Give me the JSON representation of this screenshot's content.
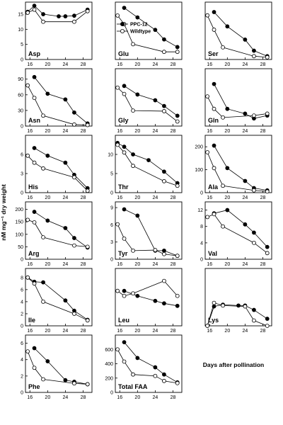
{
  "figure": {
    "y_axis_label": "nM mg⁻¹ dry weight",
    "x_axis_label": "Days after pollination"
  },
  "legend": {
    "entries": [
      {
        "label": "PPC-12",
        "marker": "filled-circle"
      },
      {
        "label": "Wildtype",
        "marker": "open-circle"
      }
    ],
    "placement": "inside Glu panel, top-left"
  },
  "style": {
    "line_color": "#000000",
    "filled_marker": "#000000",
    "open_marker": "#ffffff"
  },
  "chart_data": [
    {
      "type": "line",
      "title": "Asp",
      "x_ticks": [
        16,
        20,
        24,
        28
      ],
      "xlim": [
        15,
        30
      ],
      "ylim": [
        0,
        19
      ],
      "y_ticks": [
        0,
        5,
        10,
        15
      ],
      "series": [
        {
          "name": "PPC-12",
          "x": [
            15.5,
            17,
            19,
            22.5,
            24,
            26,
            29
          ],
          "y": [
            15.8,
            17.8,
            15,
            14.3,
            14.3,
            14.5,
            16.5
          ]
        },
        {
          "name": "Wildtype",
          "x": [
            15.5,
            17,
            19,
            26,
            29
          ],
          "y": [
            15.5,
            16.5,
            12.5,
            12.5,
            16
          ]
        }
      ]
    },
    {
      "type": "line",
      "title": "Glu",
      "x_ticks": [
        16,
        20,
        24,
        28
      ],
      "xlim": [
        15,
        30
      ],
      "ylim": [
        5,
        65
      ],
      "y_ticks": [],
      "series": [
        {
          "name": "PPC-12",
          "x": [
            17,
            20,
            24,
            26,
            29
          ],
          "y": [
            59,
            49,
            36,
            26,
            18
          ]
        },
        {
          "name": "Wildtype",
          "x": [
            15.5,
            17,
            19,
            26,
            29
          ],
          "y": [
            51,
            42,
            21,
            13,
            13
          ]
        }
      ]
    },
    {
      "type": "line",
      "title": "Ser",
      "x_ticks": [
        16,
        20,
        24,
        28
      ],
      "xlim": [
        15,
        30
      ],
      "ylim": [
        0,
        26
      ],
      "y_ticks": [],
      "series": [
        {
          "name": "PPC-12",
          "x": [
            17,
            20,
            24,
            26,
            29
          ],
          "y": [
            21.5,
            15,
            9,
            4,
            1.5
          ]
        },
        {
          "name": "Wildtype",
          "x": [
            15.5,
            17,
            19,
            26,
            29
          ],
          "y": [
            20,
            13.5,
            5.5,
            1.5,
            1
          ]
        }
      ]
    },
    {
      "type": "line",
      "title": "Asn",
      "x_ticks": [
        16,
        20,
        24,
        28
      ],
      "xlim": [
        15,
        30
      ],
      "ylim": [
        0,
        110
      ],
      "y_ticks": [
        0,
        30,
        60,
        90
      ],
      "series": [
        {
          "name": "PPC-12",
          "x": [
            17,
            20,
            24,
            26,
            29
          ],
          "y": [
            94,
            62,
            51,
            26,
            5
          ]
        },
        {
          "name": "Wildtype",
          "x": [
            15.5,
            17,
            19,
            26,
            29
          ],
          "y": [
            78,
            54,
            20,
            3,
            2
          ]
        }
      ]
    },
    {
      "type": "line",
      "title": "Gly",
      "x_ticks": [
        16,
        20,
        24,
        28
      ],
      "xlim": [
        15,
        30
      ],
      "ylim": [
        0,
        10
      ],
      "y_ticks": [],
      "series": [
        {
          "name": "PPC-12",
          "x": [
            17,
            20,
            24,
            26,
            29
          ],
          "y": [
            7,
            5.5,
            4.5,
            3.5,
            1.8
          ]
        },
        {
          "name": "Wildtype",
          "x": [
            15.5,
            17,
            19,
            26,
            29
          ],
          "y": [
            6.7,
            5.6,
            2.7,
            2.6,
            0.8
          ]
        }
      ]
    },
    {
      "type": "line",
      "title": "Gln",
      "x_ticks": [
        16,
        20,
        24,
        28
      ],
      "xlim": [
        15,
        30
      ],
      "ylim": [
        0,
        60
      ],
      "y_ticks": [],
      "series": [
        {
          "name": "PPC-12",
          "x": [
            17,
            20,
            24,
            26,
            29
          ],
          "y": [
            44,
            18,
            13,
            8,
            11
          ]
        },
        {
          "name": "Wildtype",
          "x": [
            15.5,
            17,
            19,
            26,
            29
          ],
          "y": [
            31,
            18,
            9,
            11,
            13
          ]
        }
      ]
    },
    {
      "type": "line",
      "title": "His",
      "x_ticks": [
        16,
        20,
        24,
        28
      ],
      "xlim": [
        15,
        30
      ],
      "ylim": [
        0,
        9
      ],
      "y_ticks": [
        0,
        3,
        6
      ],
      "series": [
        {
          "name": "PPC-12",
          "x": [
            17,
            20,
            24,
            26,
            29
          ],
          "y": [
            7,
            5.8,
            4.7,
            2.8,
            0.7
          ]
        },
        {
          "name": "Wildtype",
          "x": [
            15.5,
            17,
            19,
            26,
            29
          ],
          "y": [
            5.8,
            4.7,
            3.8,
            2.4,
            0.3
          ]
        }
      ]
    },
    {
      "type": "line",
      "title": "Thr",
      "x_ticks": [
        16,
        20,
        24,
        28
      ],
      "xlim": [
        15,
        30
      ],
      "ylim": [
        0,
        15
      ],
      "y_ticks": [
        0,
        5,
        10
      ],
      "series": [
        {
          "name": "PPC-12",
          "x": [
            15.5,
            17,
            19,
            22.5,
            26,
            29
          ],
          "y": [
            13,
            12,
            10,
            8.5,
            5.5,
            2.5
          ]
        },
        {
          "name": "Wildtype",
          "x": [
            15.5,
            17,
            19,
            26,
            29
          ],
          "y": [
            12.5,
            10.5,
            7,
            3,
            1.8
          ]
        }
      ]
    },
    {
      "type": "line",
      "title": "Ala",
      "x_ticks": [
        16,
        20,
        24,
        28
      ],
      "xlim": [
        15,
        30
      ],
      "ylim": [
        0,
        250
      ],
      "y_ticks": [
        0,
        100,
        200
      ],
      "series": [
        {
          "name": "PPC-12",
          "x": [
            17,
            20,
            24,
            26,
            29
          ],
          "y": [
            205,
            107,
            51,
            20,
            10
          ]
        },
        {
          "name": "Wildtype",
          "x": [
            15.5,
            17,
            19,
            26,
            29
          ],
          "y": [
            176,
            107,
            30,
            10,
            5
          ]
        }
      ]
    },
    {
      "type": "line",
      "title": "Arg",
      "x_ticks": [
        16,
        20,
        24,
        28
      ],
      "xlim": [
        15,
        30
      ],
      "ylim": [
        0,
        230
      ],
      "y_ticks": [
        0,
        50,
        100,
        150,
        200
      ],
      "series": [
        {
          "name": "PPC-12",
          "x": [
            17,
            20,
            24,
            26,
            29
          ],
          "y": [
            190,
            155,
            125,
            85,
            47
          ]
        },
        {
          "name": "Wildtype",
          "x": [
            15.5,
            17,
            19,
            26,
            29
          ],
          "y": [
            158,
            148,
            88,
            55,
            50
          ]
        }
      ]
    },
    {
      "type": "line",
      "title": "Tyr",
      "x_ticks": [
        16,
        20,
        24,
        28
      ],
      "xlim": [
        15,
        30
      ],
      "ylim": [
        0,
        10
      ],
      "y_ticks": [
        0,
        3,
        6,
        9
      ],
      "series": [
        {
          "name": "PPC-12",
          "x": [
            17,
            20,
            24,
            26,
            29
          ],
          "y": [
            8.7,
            7.6,
            1.5,
            1.5,
            0.6
          ]
        },
        {
          "name": "Wildtype",
          "x": [
            15.5,
            17,
            19,
            24,
            26,
            29
          ],
          "y": [
            6.1,
            3.6,
            1.5,
            1.6,
            0.9,
            0.6
          ]
        }
      ]
    },
    {
      "type": "line",
      "title": "Val",
      "x_ticks": [
        16,
        20,
        24,
        28
      ],
      "xlim": [
        15,
        30
      ],
      "ylim": [
        0,
        14
      ],
      "y_ticks": [
        0,
        4,
        8,
        12
      ],
      "series": [
        {
          "name": "PPC-12",
          "x": [
            17,
            20,
            24,
            26,
            29
          ],
          "y": [
            11.2,
            12,
            8.5,
            6.5,
            3
          ]
        },
        {
          "name": "Wildtype",
          "x": [
            15.5,
            17,
            19,
            26,
            29
          ],
          "y": [
            10.3,
            11,
            8,
            4,
            1.5
          ]
        }
      ]
    },
    {
      "type": "line",
      "title": "Ile",
      "x_ticks": [
        16,
        20,
        24,
        28
      ],
      "xlim": [
        15,
        30
      ],
      "ylim": [
        0,
        9.5
      ],
      "y_ticks": [
        0,
        2,
        4,
        6,
        8
      ],
      "series": [
        {
          "name": "PPC-12",
          "x": [
            15.5,
            17,
            19,
            24,
            26,
            29
          ],
          "y": [
            8,
            7.3,
            7.2,
            4.2,
            2.5,
            1
          ]
        },
        {
          "name": "Wildtype",
          "x": [
            15.5,
            17,
            19,
            26,
            29
          ],
          "y": [
            8,
            7,
            4,
            2,
            0.9
          ]
        }
      ]
    },
    {
      "type": "line",
      "title": "Leu",
      "x_ticks": [
        16,
        20,
        24,
        28
      ],
      "xlim": [
        15,
        30
      ],
      "ylim": [
        0,
        23
      ],
      "y_ticks": [],
      "series": [
        {
          "name": "PPC-12",
          "x": [
            17,
            20,
            24,
            26,
            29
          ],
          "y": [
            14,
            12,
            10,
            9,
            8
          ]
        },
        {
          "name": "Wildtype",
          "x": [
            15.5,
            17,
            19,
            26,
            29
          ],
          "y": [
            14,
            12,
            13,
            18,
            12
          ]
        }
      ]
    },
    {
      "type": "line",
      "title": "Lys",
      "x_ticks": [
        16,
        20,
        24,
        28
      ],
      "xlim": [
        15,
        30
      ],
      "ylim": [
        0,
        6.5
      ],
      "y_ticks": [],
      "series": [
        {
          "name": "PPC-12",
          "x": [
            15.5,
            17,
            19,
            22.5,
            24,
            26,
            29
          ],
          "y": [
            0,
            2.2,
            2.4,
            2.3,
            2.3,
            1.8,
            0.8
          ]
        },
        {
          "name": "Wildtype",
          "x": [
            15.5,
            17,
            19,
            24,
            26,
            29
          ],
          "y": [
            0,
            2.6,
            2.3,
            2.2,
            0.6,
            0
          ]
        }
      ]
    },
    {
      "type": "line",
      "title": "Phe",
      "x_ticks": [
        16,
        20,
        24,
        28
      ],
      "xlim": [
        15,
        30
      ],
      "ylim": [
        0,
        7
      ],
      "y_ticks": [
        0,
        2,
        4,
        6
      ],
      "series": [
        {
          "name": "PPC-12",
          "x": [
            17,
            20,
            24,
            26,
            29
          ],
          "y": [
            5.4,
            3.8,
            1.5,
            1.3,
            1
          ]
        },
        {
          "name": "Wildtype",
          "x": [
            15.5,
            17,
            19,
            26,
            29
          ],
          "y": [
            5,
            3,
            1.6,
            1.1,
            1
          ]
        }
      ]
    },
    {
      "type": "line",
      "title": "Total FAA",
      "x_ticks": [
        16,
        20,
        24,
        28
      ],
      "xlim": [
        15,
        30
      ],
      "ylim": [
        0,
        800
      ],
      "y_ticks": [
        0,
        200,
        400,
        600
      ],
      "series": [
        {
          "name": "PPC-12",
          "x": [
            17,
            20,
            24,
            26,
            29
          ],
          "y": [
            700,
            480,
            350,
            250,
            140
          ]
        },
        {
          "name": "Wildtype",
          "x": [
            15.5,
            17,
            19,
            24,
            26,
            29
          ],
          "y": [
            600,
            430,
            250,
            230,
            160,
            130
          ]
        }
      ]
    }
  ]
}
